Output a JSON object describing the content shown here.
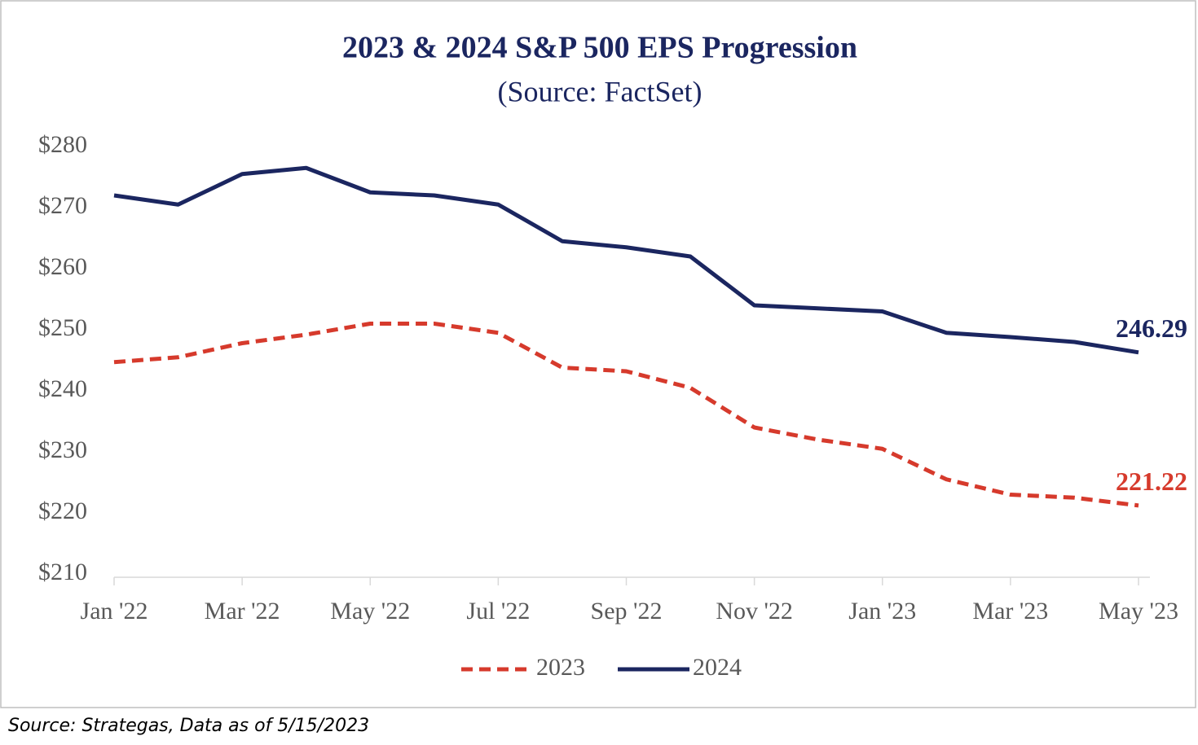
{
  "chart_data": {
    "type": "line",
    "title": "2023 & 2024 S&P 500 EPS Progression",
    "subtitle": "(Source: FactSet)",
    "footnote": "Source: Strategas, Data as of 5/15/2023",
    "x": [
      "2022-01",
      "2022-02",
      "2022-03",
      "2022-04",
      "2022-05",
      "2022-06",
      "2022-07",
      "2022-08",
      "2022-09",
      "2022-10",
      "2022-11",
      "2022-12",
      "2023-01",
      "2023-02",
      "2023-03",
      "2023-04",
      "2023-05"
    ],
    "series": [
      {
        "name": "2023",
        "color": "#d63a2c",
        "dash": true,
        "values": [
          244.7,
          245.5,
          247.8,
          249.2,
          251,
          251,
          249.5,
          243.8,
          243.2,
          240.5,
          234,
          232,
          230.5,
          225.5,
          223,
          222.5,
          221.22
        ]
      },
      {
        "name": "2024",
        "color": "#1b2660",
        "dash": false,
        "values": [
          272,
          270.5,
          275.5,
          276.5,
          272.5,
          272,
          270.5,
          264.5,
          263.5,
          262,
          254,
          253.5,
          253,
          249.5,
          248.8,
          248,
          246.29
        ]
      }
    ],
    "end_label": true,
    "ylim": [
      210,
      280
    ],
    "yticks": [
      {
        "value": 210,
        "label": "$210"
      },
      {
        "value": 220,
        "label": "$220"
      },
      {
        "value": 230,
        "label": "$230"
      },
      {
        "value": 240,
        "label": "$240"
      },
      {
        "value": 250,
        "label": "$250"
      },
      {
        "value": 260,
        "label": "$260"
      },
      {
        "value": 270,
        "label": "$270"
      },
      {
        "value": 280,
        "label": "$280"
      }
    ],
    "xticks": [
      {
        "value": "2022-01",
        "label": "Jan '22"
      },
      {
        "value": "2022-03",
        "label": "Mar '22"
      },
      {
        "value": "2022-05",
        "label": "May '22"
      },
      {
        "value": "2022-07",
        "label": "Jul '22"
      },
      {
        "value": "2022-09",
        "label": "Sep '22"
      },
      {
        "value": "2022-11",
        "label": "Nov '22"
      },
      {
        "value": "2023-01",
        "label": "Jan '23"
      },
      {
        "value": "2023-03",
        "label": "Mar '23"
      },
      {
        "value": "2023-05",
        "label": "May '23"
      }
    ],
    "legend": "bottom"
  }
}
